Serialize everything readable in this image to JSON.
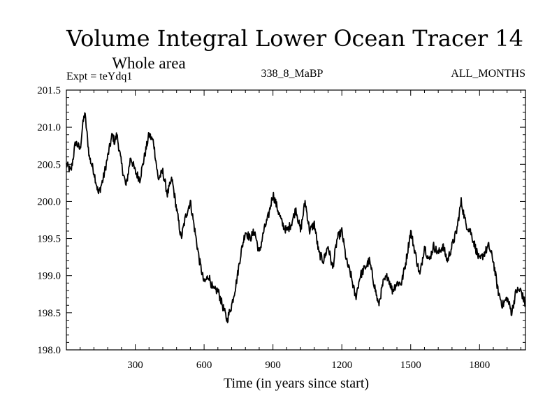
{
  "chart_data": {
    "type": "line",
    "title": "Volume Integral Lower Ocean Tracer 14",
    "subtitle": "Whole area",
    "expt_label": "Expt = teYdq1",
    "center_label": "338_8_MaBP",
    "right_label": "ALL_MONTHS",
    "xlabel": "Time (in years since start)",
    "ylabel": "",
    "xlim": [
      0,
      2000
    ],
    "ylim": [
      198.0,
      201.5
    ],
    "xticks": [
      300,
      600,
      900,
      1200,
      1500,
      1800
    ],
    "xtick_labels": [
      "300",
      "600",
      "900",
      "1200",
      "1500",
      "1800"
    ],
    "yticks": [
      198.0,
      198.5,
      199.0,
      199.5,
      200.0,
      200.5,
      201.0,
      201.5
    ],
    "ytick_labels": [
      "198.0",
      "198.5",
      "199.0",
      "199.5",
      "200.0",
      "200.5",
      "201.0",
      "201.5"
    ],
    "grid": false,
    "series": [
      {
        "name": "Tracer 14",
        "color": "#000000",
        "x": [
          0,
          20,
          40,
          60,
          70,
          80,
          100,
          120,
          140,
          160,
          180,
          200,
          210,
          220,
          240,
          260,
          280,
          300,
          320,
          340,
          360,
          380,
          400,
          420,
          440,
          460,
          480,
          500,
          520,
          540,
          560,
          580,
          600,
          620,
          640,
          660,
          680,
          700,
          720,
          740,
          760,
          780,
          800,
          820,
          840,
          860,
          880,
          900,
          920,
          940,
          960,
          980,
          1000,
          1020,
          1040,
          1060,
          1080,
          1100,
          1120,
          1140,
          1160,
          1180,
          1200,
          1220,
          1240,
          1260,
          1280,
          1300,
          1320,
          1340,
          1360,
          1380,
          1400,
          1420,
          1440,
          1460,
          1480,
          1500,
          1520,
          1540,
          1560,
          1580,
          1600,
          1620,
          1640,
          1660,
          1680,
          1700,
          1720,
          1740,
          1760,
          1780,
          1800,
          1820,
          1840,
          1860,
          1880,
          1900,
          1920,
          1940,
          1960,
          1980,
          2000
        ],
        "y": [
          200.5,
          200.4,
          200.8,
          200.7,
          201.0,
          201.2,
          200.6,
          200.4,
          200.1,
          200.3,
          200.6,
          200.9,
          200.8,
          200.9,
          200.5,
          200.2,
          200.6,
          200.4,
          200.3,
          200.6,
          200.9,
          200.8,
          200.3,
          200.4,
          200.1,
          200.3,
          199.9,
          199.5,
          199.8,
          200.0,
          199.6,
          199.2,
          198.9,
          199.0,
          198.8,
          198.8,
          198.6,
          198.4,
          198.6,
          198.9,
          199.3,
          199.6,
          199.5,
          199.6,
          199.3,
          199.6,
          199.8,
          200.1,
          199.9,
          199.7,
          199.6,
          199.7,
          199.9,
          199.6,
          200.0,
          199.6,
          199.7,
          199.3,
          199.2,
          199.4,
          199.1,
          199.5,
          199.6,
          199.2,
          199.0,
          198.7,
          199.0,
          199.1,
          199.2,
          198.9,
          198.6,
          198.9,
          199.0,
          198.8,
          198.9,
          198.9,
          199.2,
          199.6,
          199.3,
          199.0,
          199.4,
          199.2,
          199.4,
          199.3,
          199.4,
          199.2,
          199.4,
          199.6,
          200.0,
          199.7,
          199.6,
          199.4,
          199.2,
          199.3,
          199.4,
          199.2,
          198.8,
          198.6,
          198.7,
          198.5,
          198.8,
          198.8,
          198.6
        ]
      }
    ]
  }
}
